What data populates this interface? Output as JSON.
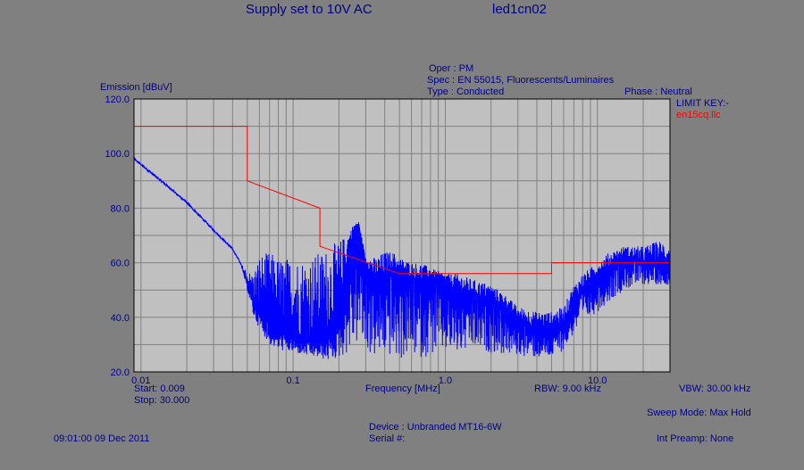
{
  "header": {
    "title": "Supply set to 10V AC",
    "test_id": "led1cn02"
  },
  "info": {
    "oper": "Oper : PM",
    "spec": "Spec : EN 55015, Fluorescents/Luminaires",
    "type": "Type : Conducted",
    "phase": "Phase : Neutral"
  },
  "legend": {
    "title": "LIMIT KEY:-",
    "limit_file": "en15cq.llc"
  },
  "footer": {
    "start": "Start: 0.009",
    "stop": "Stop: 30.000",
    "xlabel": "Frequency [MHz]",
    "rbw": "RBW: 9.00 kHz",
    "vbw": "VBW: 30.00 kHz",
    "sweep_mode": "Sweep Mode: Max Hold",
    "device": "Device : Unbranded MT16-6W",
    "serial": "Serial #:",
    "timestamp": "09:01:00 09 Dec 2011",
    "int_preamp": "Int Preamp: None"
  },
  "colors": {
    "background": "#808080",
    "plot_area": "#c0c0c0",
    "grid": "#808080",
    "text": "#00008b",
    "trace": "#0000ff",
    "limit": "#ff0000"
  },
  "chart_data": {
    "type": "line",
    "title": "Supply set to 10V AC",
    "xlabel": "Frequency [MHz]",
    "ylabel": "Emission [dBuV]",
    "x_scale": "log",
    "xlim": [
      0.009,
      30.0
    ],
    "ylim": [
      20.0,
      120.0
    ],
    "grid": true,
    "legend_position": "top-right",
    "x_tick_labels": [
      "0.01",
      "0.1",
      "1.0",
      "10.0"
    ],
    "x_tick_values": [
      0.01,
      0.1,
      1.0,
      10.0
    ],
    "y_tick_labels": [
      "20.0",
      "40.0",
      "60.0",
      "80.0",
      "100.0",
      "120.0"
    ],
    "y_tick_values": [
      20,
      40,
      60,
      80,
      100,
      120
    ],
    "limit_line": {
      "name": "en15cq.llc",
      "x": [
        0.009,
        0.05,
        0.05,
        0.15,
        0.15,
        0.5,
        5.0,
        5.0,
        30.0
      ],
      "y": [
        110,
        110,
        90,
        80,
        66,
        56,
        56,
        60,
        60
      ]
    },
    "series": [
      {
        "trace": "emission",
        "x": [
          0.009,
          0.01,
          0.015,
          0.02,
          0.03,
          0.04,
          0.045,
          0.05,
          0.055,
          0.06,
          0.07,
          0.08,
          0.1,
          0.12,
          0.15,
          0.17,
          0.2,
          0.22,
          0.25,
          0.27,
          0.3,
          0.35,
          0.4,
          0.45,
          0.5,
          0.6,
          0.7,
          0.8,
          1.0,
          1.2,
          1.5,
          2.0,
          2.5,
          3.0,
          4.0,
          5.0,
          6.0,
          7.0,
          8.0,
          10.0,
          12.0,
          15.0,
          20.0,
          25.0,
          30.0
        ],
        "y": [
          98,
          96,
          88,
          82,
          72,
          65,
          60,
          52,
          46,
          42,
          38,
          35,
          33,
          31,
          31,
          33,
          38,
          55,
          72,
          74,
          60,
          52,
          56,
          58,
          55,
          55,
          52,
          55,
          52,
          50,
          48,
          46,
          44,
          38,
          36,
          36,
          38,
          46,
          50,
          55,
          58,
          62,
          60,
          60,
          58
        ],
        "envelope_min": [
          98,
          96,
          88,
          82,
          72,
          65,
          60,
          50,
          40,
          36,
          30,
          28,
          27,
          26,
          25,
          24,
          25,
          26,
          28,
          30,
          27,
          25,
          26,
          25,
          24,
          26,
          25,
          26,
          27,
          26,
          28,
          27,
          26,
          26,
          25,
          25,
          28,
          34,
          38,
          42,
          46,
          50,
          52,
          52,
          52
        ],
        "envelope_max": [
          98,
          96,
          88,
          82,
          72,
          65,
          60,
          57,
          56,
          63,
          64,
          62,
          62,
          62,
          64,
          66,
          68,
          70,
          74,
          75,
          62,
          62,
          64,
          64,
          62,
          60,
          60,
          58,
          56,
          56,
          54,
          52,
          48,
          44,
          42,
          42,
          44,
          52,
          56,
          60,
          64,
          66,
          66,
          68,
          68
        ]
      }
    ]
  }
}
